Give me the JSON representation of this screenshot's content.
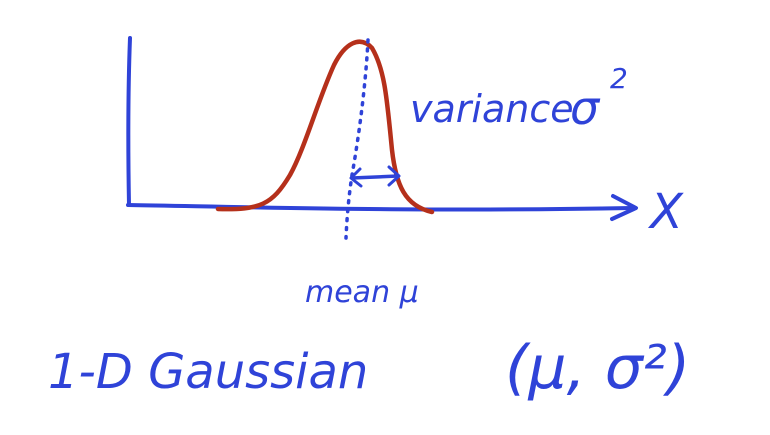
{
  "diagram": {
    "labels": {
      "variance_word": "variance",
      "variance_sym": "σ",
      "variance_exp": "2",
      "axis_label": "X",
      "mean_label": "mean μ",
      "caption": "1-D Gaussian",
      "params": "(μ, σ²)"
    },
    "colors": {
      "ink": "#2f43d8",
      "curve": "#b5301b",
      "background": "#ffffff"
    }
  }
}
